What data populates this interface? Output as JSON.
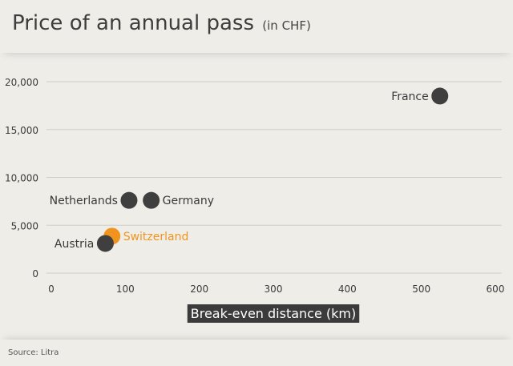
{
  "header": {
    "title": "Price of an annual pass",
    "subtitle": "(in CHF)"
  },
  "footer": {
    "source": "Source: Litra"
  },
  "colors": {
    "dot": "#3f3f3f",
    "highlight": "#f0941f",
    "grid": "#cfcdc8",
    "xlabel_bg": "#3b3b3b"
  },
  "chart_data": {
    "type": "scatter",
    "title": "Price of an annual pass",
    "subtitle": "(in CHF)",
    "xlabel": "Break-even distance (km)",
    "ylabel": "",
    "xlim": [
      0,
      600
    ],
    "ylim": [
      0,
      20000
    ],
    "x_ticks": [
      "0",
      "100",
      "200",
      "300",
      "400",
      "500",
      "600"
    ],
    "y_ticks": [
      "0",
      "5,000",
      "10,000",
      "15,000",
      "20,000"
    ],
    "grid": "horizontal",
    "points": [
      {
        "label": "France",
        "x": 525,
        "y": 18500,
        "highlight": false,
        "label_side": "left"
      },
      {
        "label": "Netherlands",
        "x": 105,
        "y": 7600,
        "highlight": false,
        "label_side": "left"
      },
      {
        "label": "Germany",
        "x": 135,
        "y": 7600,
        "highlight": false,
        "label_side": "right"
      },
      {
        "label": "Switzerland",
        "x": 82,
        "y": 3860,
        "highlight": true,
        "label_side": "right"
      },
      {
        "label": "Austria",
        "x": 73,
        "y": 3100,
        "highlight": false,
        "label_side": "left"
      }
    ]
  }
}
